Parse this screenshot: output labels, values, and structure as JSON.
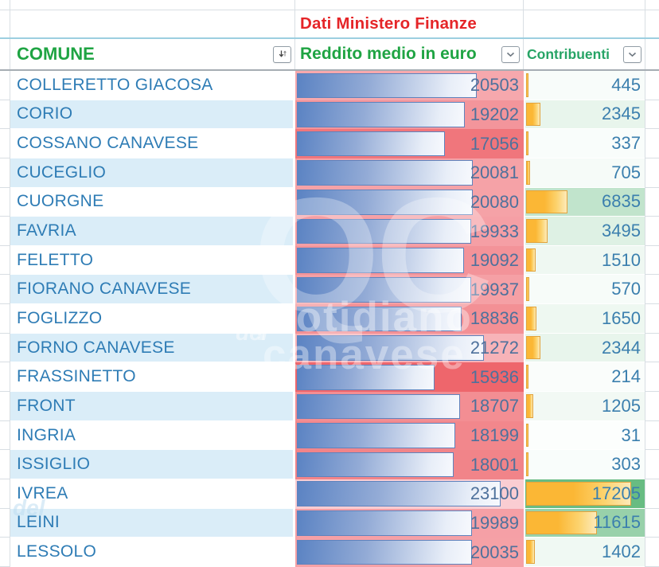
{
  "title": {
    "label": "Dati Ministero Finanze"
  },
  "columns": {
    "comune": {
      "label": "COMUNE",
      "filter_icon": "sort-filter-icon"
    },
    "reddito": {
      "label": "Reddito medio in euro",
      "filter_icon": "chevron-down-icon"
    },
    "contribuenti": {
      "label": "Contribuenti",
      "filter_icon": "chevron-down-icon"
    }
  },
  "watermark": {
    "big": "QC",
    "line1": "quotidiano",
    "line2": "canavese",
    "small": "del"
  },
  "colors": {
    "green": "#1FA443",
    "green_soft": "#27A466",
    "red_title": "#E52528",
    "name_blue": "#2E7CB5",
    "num_blue": "#4E719C",
    "num_blue2": "#3B7FAE",
    "alt_row": "#DAEDF8",
    "grid": "#D8DEE3",
    "grid_dark": "#A6ADB3",
    "cyan_line": "#9CCFE0",
    "bar_blue_dark": "#5B83C3",
    "bar_blue_light": "#F7F9FD",
    "bar_blue_border": "#5F83BD",
    "bar_orange": "#FBB735",
    "bar_orange_light": "#FDEAB9",
    "bar_orange_border": "#E2A33C",
    "reddito_scale_low": "#EE666C",
    "reddito_scale_high": "#FACDD2",
    "contribuenti_scale_low": "#FCFEFD",
    "contribuenti_scale_high": "#68BC82"
  },
  "scales": {
    "reddito_min": 15936,
    "reddito_max": 23100,
    "contribuenti_max": 17205
  },
  "table": {
    "rows": [
      {
        "comune": "COLLERETTO GIACOSA",
        "reddito": 20503,
        "contribuenti": 445
      },
      {
        "comune": "CORIO",
        "reddito": 19202,
        "contribuenti": 2345
      },
      {
        "comune": "COSSANO CANAVESE",
        "reddito": 17056,
        "contribuenti": 337
      },
      {
        "comune": "CUCEGLIO",
        "reddito": 20081,
        "contribuenti": 705
      },
      {
        "comune": "CUORGNE",
        "reddito": 20080,
        "contribuenti": 6835
      },
      {
        "comune": "FAVRIA",
        "reddito": 19933,
        "contribuenti": 3495
      },
      {
        "comune": "FELETTO",
        "reddito": 19092,
        "contribuenti": 1510
      },
      {
        "comune": "FIORANO CANAVESE",
        "reddito": 19937,
        "contribuenti": 570
      },
      {
        "comune": "FOGLIZZO",
        "reddito": 18836,
        "contribuenti": 1650
      },
      {
        "comune": "FORNO CANAVESE",
        "reddito": 21272,
        "contribuenti": 2344
      },
      {
        "comune": "FRASSINETTO",
        "reddito": 15936,
        "contribuenti": 214
      },
      {
        "comune": "FRONT",
        "reddito": 18707,
        "contribuenti": 1205
      },
      {
        "comune": "INGRIA",
        "reddito": 18199,
        "contribuenti": 31
      },
      {
        "comune": "ISSIGLIO",
        "reddito": 18001,
        "contribuenti": 303
      },
      {
        "comune": "IVREA",
        "reddito": 23100,
        "contribuenti": 17205
      },
      {
        "comune": "LEINI",
        "reddito": 19989,
        "contribuenti": 11615
      },
      {
        "comune": "LESSOLO",
        "reddito": 20035,
        "contribuenti": 1402
      }
    ]
  }
}
